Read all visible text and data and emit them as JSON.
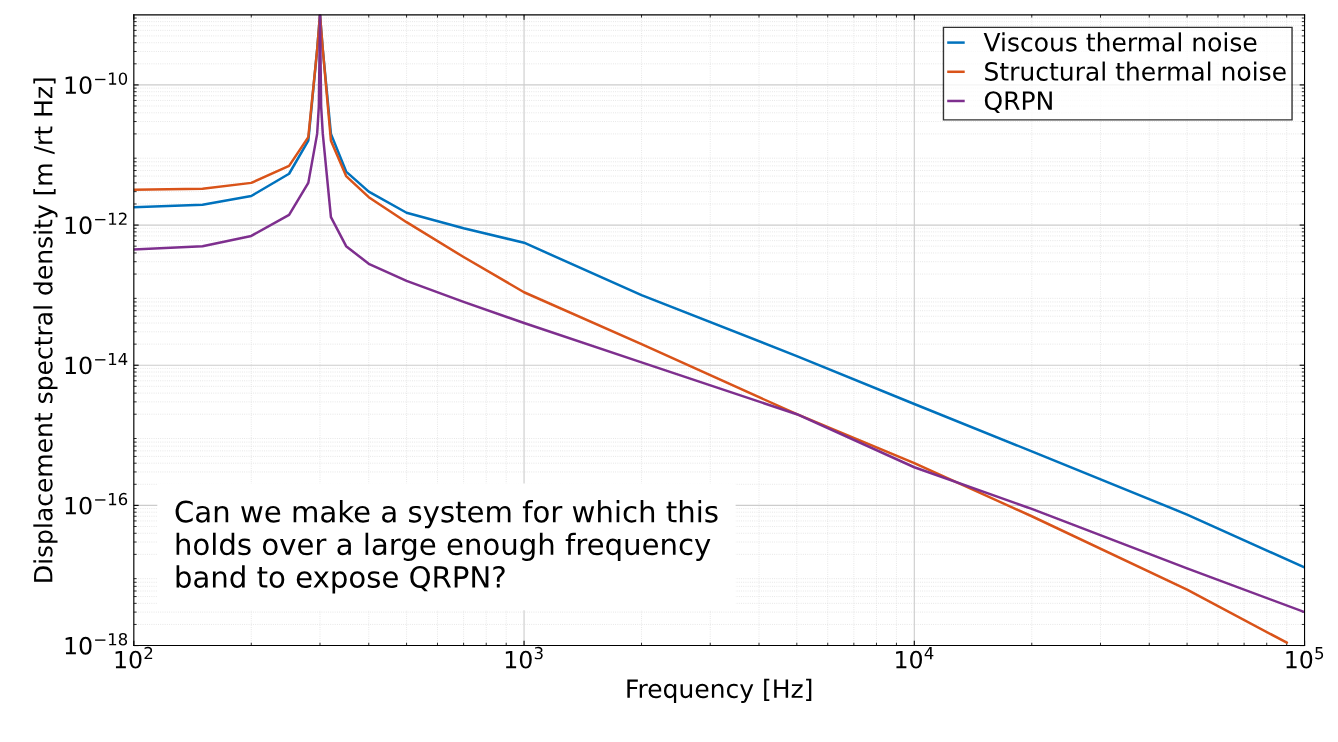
{
  "chart_data": {
    "type": "line",
    "xlabel": "Frequency [Hz]",
    "ylabel": "Displacement spectral density [m /rt Hz]",
    "log": "xy",
    "xlim": [
      100,
      100000
    ],
    "ylim": [
      1e-18,
      1e-09
    ],
    "xticks": [
      {
        "value": 100,
        "label": "10$^{2}$"
      },
      {
        "value": 1000,
        "label": "10$^{3}$"
      },
      {
        "value": 10000,
        "label": "10$^{4}$"
      },
      {
        "value": 100000,
        "label": "10$^{5}$"
      }
    ],
    "yticks": [
      {
        "value": 1e-18,
        "label": "10$^{−18}$"
      },
      {
        "value": 1e-16,
        "label": "10$^{−16}$"
      },
      {
        "value": 1e-14,
        "label": "10$^{−14}$"
      },
      {
        "value": 1e-12,
        "label": "10$^{−12}$"
      },
      {
        "value": 1e-10,
        "label": "10$^{−10}$"
      }
    ],
    "grid": true,
    "legend": "top right",
    "line_style": "solid",
    "marker": "none",
    "annotations": [
      "Can we make a system for which this holds over a large enough frequency band to expose QRPN?"
    ],
    "series": [
      {
        "name": "Viscous thermal noise",
        "color": "#0072bd",
        "x": [
          100,
          150,
          200,
          250,
          280,
          295,
          300,
          305,
          320,
          350,
          400,
          500,
          700,
          1000,
          2000,
          5000,
          10000,
          20000,
          50000,
          100000
        ],
        "values": [
          1.8e-12,
          1.95e-12,
          2.6e-12,
          5.4e-12,
          1.6e-11,
          3.2e-10,
          1e-09,
          3.2e-10,
          2e-11,
          5.8e-12,
          3e-12,
          1.5e-12,
          9e-13,
          5.6e-13,
          1e-13,
          1.35e-14,
          2.8e-15,
          5.9e-16,
          7.4e-17,
          1.3e-17
        ]
      },
      {
        "name": "Structural thermal noise",
        "color": "#d95319",
        "x": [
          100,
          150,
          200,
          250,
          280,
          295,
          300,
          305,
          320,
          350,
          400,
          500,
          700,
          1000,
          2000,
          5000,
          10000,
          20000,
          50000,
          90000
        ],
        "values": [
          3.2e-12,
          3.3e-12,
          4e-12,
          7e-12,
          1.8e-11,
          3.2e-10,
          1e-09,
          3.2e-10,
          1.6e-11,
          5e-12,
          2.5e-12,
          1.1e-12,
          3.5e-13,
          1.1e-13,
          2e-14,
          2e-15,
          4e-16,
          7e-17,
          6.3e-18,
          1.1e-18
        ]
      },
      {
        "name": "QRPN",
        "color": "#7e2f8e",
        "x": [
          100,
          150,
          200,
          250,
          280,
          295,
          298,
          300,
          302,
          305,
          320,
          350,
          400,
          500,
          700,
          1000,
          2000,
          5000,
          10000,
          20000,
          50000,
          100000
        ],
        "values": [
          4.5e-13,
          5e-13,
          7e-13,
          1.4e-12,
          4e-12,
          2e-11,
          5e-11,
          1e-09,
          5e-11,
          2e-11,
          1.3e-12,
          5e-13,
          2.8e-13,
          1.6e-13,
          8e-14,
          4e-14,
          1.1e-14,
          2e-15,
          3.5e-16,
          8.9e-17,
          1.26e-17,
          3e-18
        ]
      }
    ]
  }
}
